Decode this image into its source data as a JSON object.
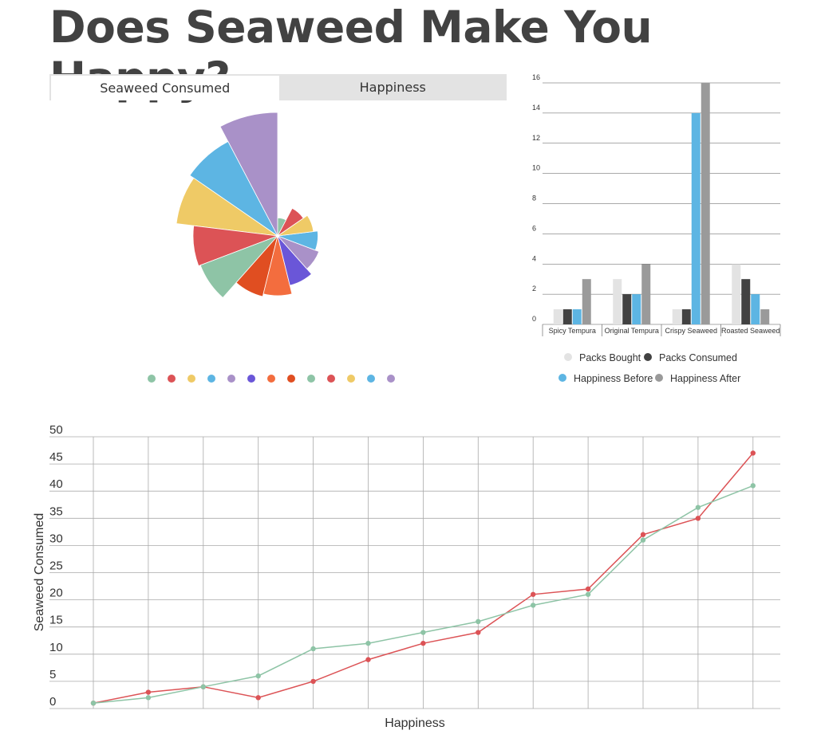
{
  "title": "Does Seaweed Make You Happy?",
  "tabs": [
    {
      "label": "Seaweed Consumed",
      "active": true
    },
    {
      "label": "Happiness",
      "active": false
    }
  ],
  "chart_data": [
    {
      "type": "pie",
      "variant": "polar-area",
      "values": [
        47,
        35,
        32,
        22,
        21,
        12,
        11,
        8,
        6,
        5,
        4,
        3,
        1
      ],
      "colors": [
        "#a991c8",
        "#5db5e3",
        "#efca66",
        "#dc5356",
        "#8ec4a6",
        "#e04e21",
        "#f36d3e",
        "#6a56d8",
        "#a991c8",
        "#5db5e3",
        "#efca66",
        "#dc5356",
        "#8ec4a6"
      ],
      "legend_dots": [
        "#8ec4a6",
        "#dc5356",
        "#efca66",
        "#5db5e3",
        "#a991c8",
        "#6a56d8",
        "#f36d3e",
        "#e04e21",
        "#8ec4a6",
        "#dc5356",
        "#efca66",
        "#5db5e3",
        "#a991c8"
      ]
    },
    {
      "type": "bar",
      "categories": [
        "Spicy Tempura",
        "Original Tempura",
        "Crispy Seaweed",
        "Roasted Seaweed"
      ],
      "series": [
        {
          "name": "Packs Bought",
          "color": "#e3e3e3",
          "values": [
            1,
            3,
            1,
            4
          ]
        },
        {
          "name": "Packs Consumed",
          "color": "#424242",
          "values": [
            1,
            2,
            1,
            3
          ]
        },
        {
          "name": "Happiness Before",
          "color": "#5db5e3",
          "values": [
            1,
            2,
            14,
            2
          ]
        },
        {
          "name": "Happiness After",
          "color": "#9a9a9a",
          "values": [
            3,
            4,
            16,
            1
          ]
        }
      ],
      "yticks": [
        "0",
        "2",
        "4",
        "6",
        "8",
        "10",
        "12",
        "14",
        "16"
      ],
      "ylim": [
        0,
        16
      ],
      "grid": true,
      "legend": "bottom"
    },
    {
      "type": "line",
      "xlabel": "Happiness",
      "ylabel": "Seaweed Consumed",
      "ylim": [
        0,
        50
      ],
      "yticks": [
        "0",
        "5",
        "10",
        "15",
        "20",
        "25",
        "30",
        "35",
        "40",
        "45",
        "50"
      ],
      "grid": true,
      "x": [
        1,
        2,
        3,
        4,
        5,
        6,
        7,
        8,
        9,
        10,
        11,
        12,
        13
      ],
      "series": [
        {
          "color": "#dc5356",
          "values": [
            1,
            3,
            4,
            2,
            5,
            9,
            12,
            14,
            21,
            22,
            32,
            35,
            47
          ]
        },
        {
          "color": "#8ec4a6",
          "values": [
            1,
            2,
            4,
            6,
            11,
            12,
            14,
            16,
            19,
            21,
            31,
            37,
            41
          ]
        }
      ]
    }
  ]
}
